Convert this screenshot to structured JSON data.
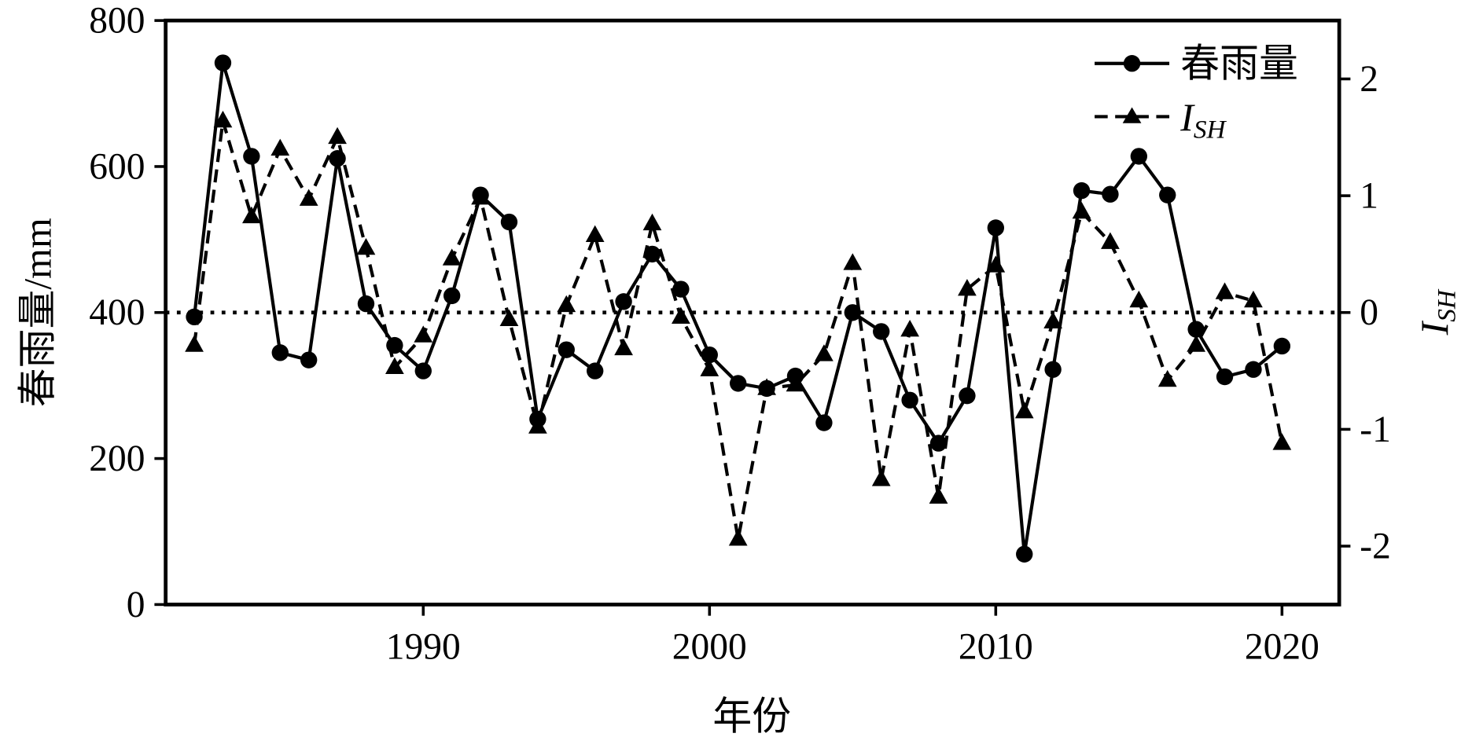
{
  "chart_data": {
    "type": "line",
    "title": "",
    "xlabel": "年份",
    "ylabel": "春雨量/mm",
    "ylabel_right": {
      "main": "I",
      "sub": "SH"
    },
    "xlim": [
      1981,
      2022
    ],
    "ylim": [
      0,
      800
    ],
    "ylim_right": [
      -2.5,
      2.5
    ],
    "xticks": [
      "1990",
      "2000",
      "2010",
      "2020"
    ],
    "yticks": [
      "0",
      "200",
      "400",
      "600",
      "800"
    ],
    "yticks_right": [
      "-2",
      "-1",
      "0",
      "1",
      "2"
    ],
    "grid": false,
    "legend": "top-right",
    "reference_line": {
      "axis": "right",
      "value": 0,
      "style": "dotted"
    },
    "x": [
      1982,
      1983,
      1984,
      1985,
      1986,
      1987,
      1988,
      1989,
      1990,
      1991,
      1992,
      1993,
      1994,
      1995,
      1996,
      1997,
      1998,
      1999,
      2000,
      2001,
      2002,
      2003,
      2004,
      2005,
      2006,
      2007,
      2008,
      2009,
      2010,
      2011,
      2012,
      2013,
      2014,
      2015,
      2016,
      2017,
      2018,
      2019,
      2020
    ],
    "series": [
      {
        "name": "春雨量",
        "axis": "left",
        "marker": "circle",
        "line": "solid",
        "color": "#000000",
        "values": [
          394,
          742,
          614,
          345,
          335,
          611,
          412,
          355,
          320,
          423,
          561,
          524,
          254,
          349,
          320,
          415,
          480,
          432,
          342,
          303,
          296,
          313,
          249,
          400,
          374,
          280,
          221,
          286,
          516,
          69,
          322,
          567,
          562,
          614,
          561,
          377,
          312,
          322,
          354
        ]
      },
      {
        "name": "I_SH",
        "legend_label": {
          "main": "I",
          "sub": "SH"
        },
        "axis": "right",
        "marker": "triangle",
        "line": "dashed",
        "color": "#000000",
        "values": [
          -0.28,
          1.64,
          0.82,
          1.4,
          0.97,
          1.5,
          0.55,
          -0.47,
          -0.2,
          0.46,
          0.98,
          -0.06,
          -0.98,
          0.06,
          0.66,
          -0.31,
          0.76,
          -0.04,
          -0.49,
          -1.94,
          -0.65,
          -0.62,
          -0.36,
          0.42,
          -1.43,
          -0.15,
          -1.58,
          0.2,
          0.4,
          -0.85,
          -0.08,
          0.86,
          0.6,
          0.1,
          -0.58,
          -0.28,
          0.17,
          0.1,
          -1.12
        ]
      }
    ]
  }
}
